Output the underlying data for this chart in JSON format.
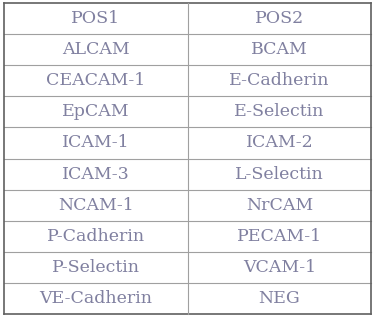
{
  "col1": [
    "POS1",
    "ALCAM",
    "CEACAM-1",
    "EpCAM",
    "ICAM-1",
    "ICAM-3",
    "NCAM-1",
    "P-Cadherin",
    "P-Selectin",
    "VE-Cadherin"
  ],
  "col2": [
    "POS2",
    "BCAM",
    "E-Cadherin",
    "E-Selectin",
    "ICAM-2",
    "L-Selectin",
    "NrCAM",
    "PECAM-1",
    "VCAM-1",
    "NEG"
  ],
  "text_color": "#8080A0",
  "line_color": "#A0A0A0",
  "background_color": "#FFFFFF",
  "font_size": 12.5,
  "fig_width": 3.75,
  "fig_height": 3.17,
  "outer_border_color": "#606060",
  "inner_line_color": "#B0B0B0"
}
